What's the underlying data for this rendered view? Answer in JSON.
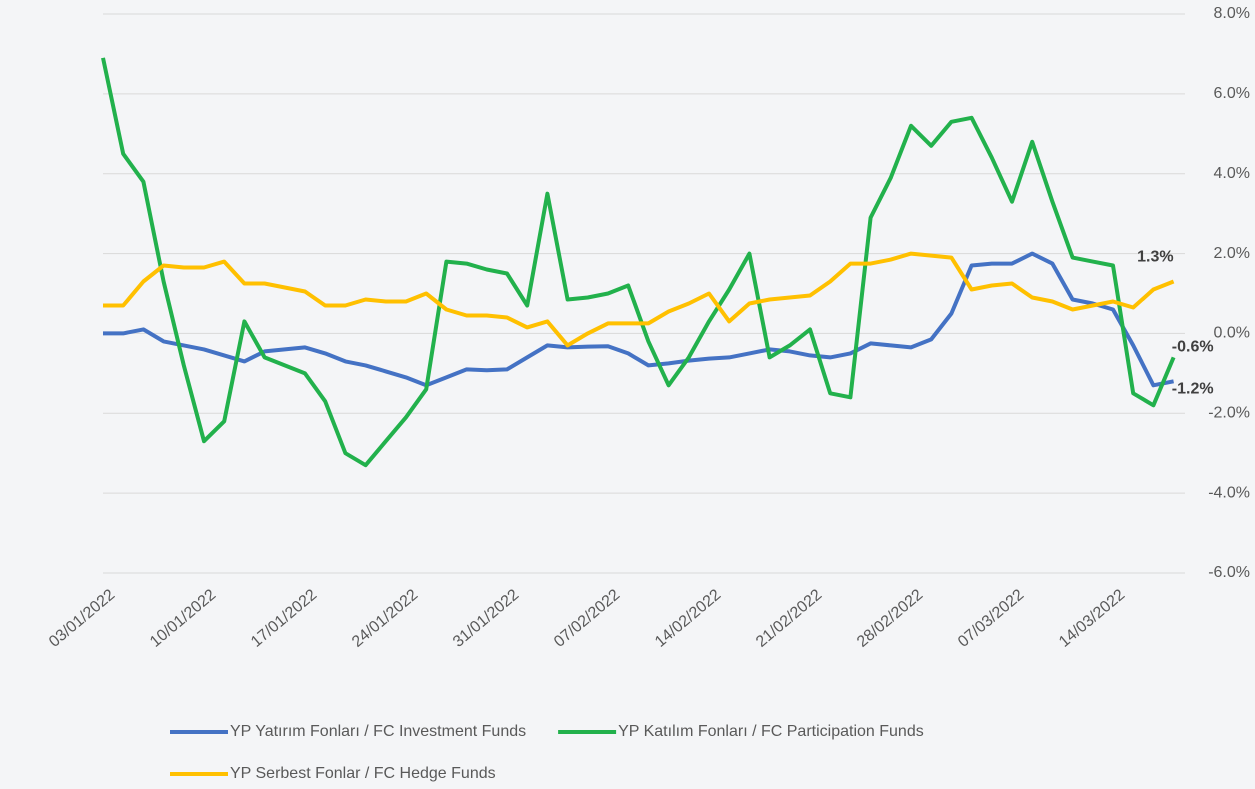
{
  "chart_data": {
    "type": "line",
    "categories": [
      "03/01/2022",
      null,
      null,
      null,
      null,
      "10/01/2022",
      null,
      null,
      null,
      null,
      "17/01/2022",
      null,
      null,
      null,
      null,
      "24/01/2022",
      null,
      null,
      null,
      null,
      "31/01/2022",
      null,
      null,
      null,
      null,
      "07/02/2022",
      null,
      null,
      null,
      null,
      "14/02/2022",
      null,
      null,
      null,
      null,
      "21/02/2022",
      null,
      null,
      null,
      null,
      "28/02/2022",
      null,
      null,
      null,
      null,
      "07/03/2022",
      null,
      null,
      null,
      null,
      "14/03/2022",
      null,
      null,
      null
    ],
    "series": [
      {
        "name": "YP Yatırım Fonları / FC Investment Funds",
        "color": "#4472c4",
        "values": [
          0,
          0,
          0.1,
          -0.2,
          -0.3,
          -0.4,
          -0.55,
          -0.7,
          -0.45,
          -0.4,
          -0.35,
          -0.5,
          -0.7,
          -0.8,
          -0.95,
          -1.1,
          -1.3,
          -1.1,
          -0.9,
          -0.92,
          -0.9,
          -0.6,
          -0.3,
          -0.35,
          -0.33,
          -0.32,
          -0.5,
          -0.8,
          -0.75,
          -0.68,
          -0.63,
          -0.6,
          -0.5,
          -0.4,
          -0.45,
          -0.55,
          -0.6,
          -0.5,
          -0.25,
          -0.3,
          -0.35,
          -0.15,
          0.5,
          1.7,
          1.75,
          1.75,
          2.0,
          1.75,
          0.85,
          0.75,
          0.6,
          -0.3,
          -1.3,
          -1.2
        ],
        "value_labels": [
          null,
          null,
          null,
          null,
          null,
          null,
          null,
          null,
          null,
          null,
          null,
          null,
          null,
          null,
          null,
          null,
          null,
          null,
          null,
          null,
          null,
          null,
          null,
          null,
          null,
          null,
          null,
          null,
          null,
          null,
          null,
          null,
          null,
          null,
          null,
          null,
          null,
          null,
          null,
          null,
          null,
          null,
          null,
          null,
          null,
          null,
          null,
          null,
          null,
          null,
          null,
          null,
          null,
          "-1.2%"
        ]
      },
      {
        "name": "YP Katılım Fonları / FC Participation Funds",
        "color": "#22b14c",
        "values": [
          6.9,
          4.5,
          3.8,
          1.3,
          -0.8,
          -2.7,
          -2.2,
          0.3,
          -0.6,
          -0.8,
          -1.0,
          -1.7,
          -3.0,
          -3.3,
          -2.7,
          -2.1,
          -1.4,
          1.8,
          1.75,
          1.6,
          1.5,
          0.7,
          3.5,
          0.85,
          0.9,
          1.0,
          1.2,
          -0.2,
          -1.3,
          -0.6,
          0.3,
          1.1,
          2.0,
          -0.6,
          -0.3,
          0.1,
          -1.5,
          -1.6,
          2.9,
          3.9,
          5.2,
          4.7,
          5.3,
          5.4,
          4.4,
          3.3,
          4.8,
          3.3,
          1.9,
          1.8,
          1.7,
          -1.5,
          -1.8,
          -0.6
        ],
        "value_labels": [
          null,
          null,
          null,
          null,
          null,
          null,
          null,
          null,
          null,
          null,
          null,
          null,
          null,
          null,
          null,
          null,
          null,
          null,
          null,
          null,
          null,
          null,
          null,
          null,
          null,
          null,
          null,
          null,
          null,
          null,
          null,
          null,
          null,
          null,
          null,
          null,
          null,
          null,
          null,
          null,
          null,
          null,
          null,
          null,
          null,
          null,
          null,
          null,
          null,
          null,
          null,
          null,
          null,
          "-0.6%"
        ]
      },
      {
        "name": "YP Serbest Fonlar / FC Hedge Funds",
        "color": "#ffc000",
        "values": [
          0.7,
          0.7,
          1.3,
          1.7,
          1.65,
          1.65,
          1.8,
          1.25,
          1.25,
          1.15,
          1.05,
          0.7,
          0.7,
          0.85,
          0.8,
          0.8,
          1.0,
          0.6,
          0.45,
          0.45,
          0.4,
          0.15,
          0.3,
          -0.3,
          0.0,
          0.25,
          0.25,
          0.25,
          0.55,
          0.75,
          1.0,
          0.3,
          0.75,
          0.85,
          0.9,
          0.95,
          1.3,
          1.75,
          1.75,
          1.85,
          2.0,
          1.95,
          1.9,
          1.1,
          1.2,
          1.25,
          0.9,
          0.8,
          0.6,
          0.7,
          0.8,
          0.65,
          1.1,
          1.3
        ],
        "value_labels": [
          null,
          null,
          null,
          null,
          null,
          null,
          null,
          null,
          null,
          null,
          null,
          null,
          null,
          null,
          null,
          null,
          null,
          null,
          null,
          null,
          null,
          null,
          null,
          null,
          null,
          null,
          null,
          null,
          null,
          null,
          null,
          null,
          null,
          null,
          null,
          null,
          null,
          null,
          null,
          null,
          null,
          null,
          null,
          null,
          null,
          null,
          null,
          null,
          null,
          null,
          null,
          null,
          null,
          "1.3%"
        ]
      }
    ],
    "ylim": [
      -6,
      8
    ],
    "yticks": [
      {
        "value": -6,
        "label": "-6.0%"
      },
      {
        "value": -4,
        "label": "-4.0%"
      },
      {
        "value": -2,
        "label": "-2.0%"
      },
      {
        "value": 0,
        "label": "0.0%"
      },
      {
        "value": 2,
        "label": "2.0%"
      },
      {
        "value": 4,
        "label": "4.0%"
      },
      {
        "value": 6,
        "label": "6.0%"
      },
      {
        "value": 8,
        "label": "8.0%"
      }
    ],
    "grid": true,
    "legend": "bottom"
  }
}
